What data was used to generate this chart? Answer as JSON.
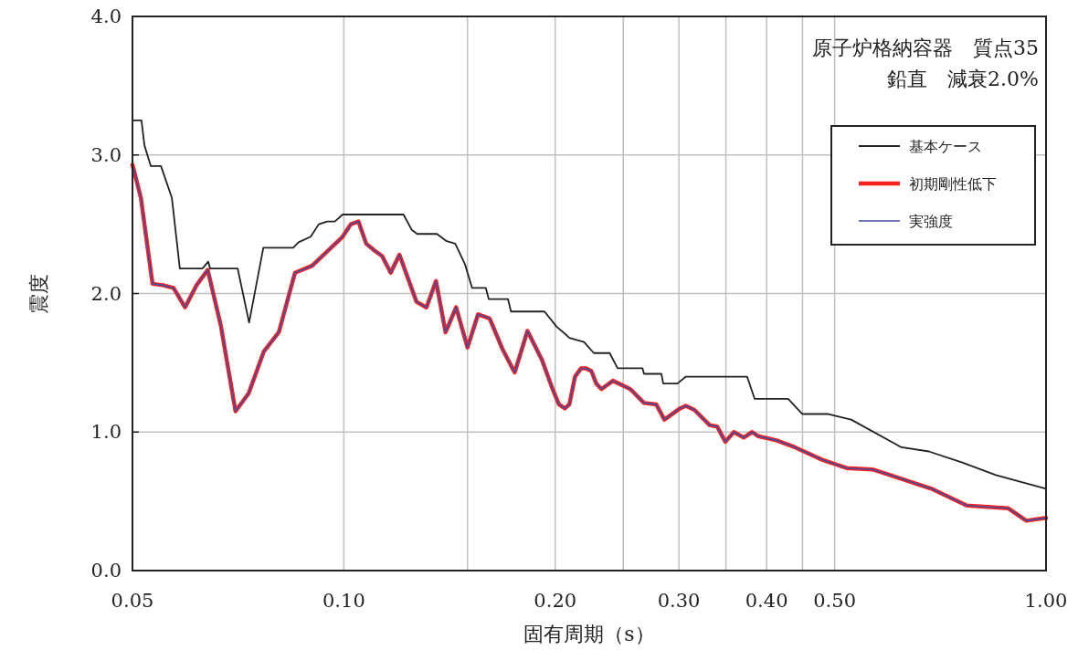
{
  "chart_data": {
    "type": "line",
    "xlabel": "固有周期（s）",
    "ylabel": "震度",
    "log": "x",
    "grid": true,
    "legend": "top right",
    "annotations": [
      "原子炉格納容器　質点35",
      "鉛直　減衰2.0%"
    ],
    "xlim": [
      0.05,
      1.0
    ],
    "ylim": [
      0,
      4
    ],
    "xticks": [
      {
        "value": 0.05,
        "label": "0.05"
      },
      {
        "value": 0.1,
        "label": "0.10"
      },
      {
        "value": 0.15,
        "label": null
      },
      {
        "value": 0.2,
        "label": "0.20"
      },
      {
        "value": 0.25,
        "label": null
      },
      {
        "value": 0.3,
        "label": "0.30"
      },
      {
        "value": 0.35,
        "label": null
      },
      {
        "value": 0.4,
        "label": "0.40"
      },
      {
        "value": 0.45,
        "label": null
      },
      {
        "value": 0.5,
        "label": "0.50"
      },
      {
        "value": 1.0,
        "label": "1.00"
      }
    ],
    "yticks": [
      {
        "value": 0,
        "label": "0.0"
      },
      {
        "value": 1,
        "label": "1.0"
      },
      {
        "value": 2,
        "label": "2.0"
      },
      {
        "value": 3,
        "label": "3.0"
      },
      {
        "value": 4,
        "label": "4.0"
      }
    ],
    "series": [
      {
        "name": "基本ケース",
        "color": "#222222",
        "x": [
          0.05,
          0.0515,
          0.052,
          0.0531,
          0.0549,
          0.0569,
          0.0584,
          0.0629,
          0.0641,
          0.0645,
          0.0706,
          0.0733,
          0.0768,
          0.0847,
          0.0862,
          0.0897,
          0.0921,
          0.0947,
          0.0971,
          0.0996,
          0.1216,
          0.1249,
          0.1272,
          0.1357,
          0.1398,
          0.1441,
          0.1488,
          0.1523,
          0.1593,
          0.1608,
          0.1713,
          0.173,
          0.1931,
          0.2009,
          0.2075,
          0.2095,
          0.2198,
          0.227,
          0.2391,
          0.2454,
          0.2663,
          0.2676,
          0.2833,
          0.285,
          0.2987,
          0.3069,
          0.3752,
          0.3846,
          0.4293,
          0.4498,
          0.4897,
          0.5278,
          0.6224,
          0.6809,
          0.7598,
          0.8482,
          1.0
        ],
        "values": [
          3.25,
          3.25,
          3.07,
          2.92,
          2.92,
          2.69,
          2.18,
          2.18,
          2.23,
          2.18,
          2.18,
          1.79,
          2.33,
          2.33,
          2.37,
          2.41,
          2.5,
          2.52,
          2.52,
          2.57,
          2.57,
          2.46,
          2.43,
          2.43,
          2.38,
          2.36,
          2.21,
          2.04,
          2.04,
          1.96,
          1.96,
          1.87,
          1.87,
          1.76,
          1.7,
          1.68,
          1.65,
          1.57,
          1.57,
          1.46,
          1.46,
          1.42,
          1.42,
          1.35,
          1.35,
          1.4,
          1.4,
          1.24,
          1.24,
          1.13,
          1.13,
          1.09,
          0.89,
          0.86,
          0.78,
          0.69,
          0.59
        ]
      },
      {
        "name": "初期剛性低下",
        "color": "#ff2020",
        "x": [
          0.05,
          0.0514,
          0.0534,
          0.0552,
          0.0572,
          0.0594,
          0.0617,
          0.064,
          0.0668,
          0.0701,
          0.0732,
          0.0769,
          0.0808,
          0.0852,
          0.0901,
          0.0996,
          0.1023,
          0.1049,
          0.1076,
          0.1106,
          0.1134,
          0.1166,
          0.12,
          0.1269,
          0.1311,
          0.1353,
          0.1396,
          0.1445,
          0.15,
          0.1553,
          0.1613,
          0.1682,
          0.1751,
          0.1826,
          0.1915,
          0.1983,
          0.2024,
          0.2064,
          0.2095,
          0.2134,
          0.2177,
          0.2214,
          0.2252,
          0.2288,
          0.2327,
          0.2417,
          0.2559,
          0.2676,
          0.2785,
          0.2861,
          0.3011,
          0.3069,
          0.3156,
          0.3318,
          0.3401,
          0.3494,
          0.3593,
          0.371,
          0.3815,
          0.3892,
          0.4133,
          0.4388,
          0.4477,
          0.48,
          0.52,
          0.5661,
          0.6161,
          0.6876,
          0.7713,
          0.8828,
          0.9373,
          1.0
        ],
        "values": [
          2.93,
          2.69,
          2.07,
          2.06,
          2.04,
          1.9,
          2.06,
          2.17,
          1.77,
          1.15,
          1.28,
          1.58,
          1.72,
          2.15,
          2.2,
          2.41,
          2.5,
          2.52,
          2.36,
          2.31,
          2.27,
          2.15,
          2.28,
          1.94,
          1.9,
          2.09,
          1.72,
          1.9,
          1.61,
          1.85,
          1.82,
          1.6,
          1.43,
          1.73,
          1.52,
          1.31,
          1.2,
          1.17,
          1.2,
          1.4,
          1.46,
          1.46,
          1.44,
          1.35,
          1.31,
          1.37,
          1.31,
          1.21,
          1.2,
          1.09,
          1.17,
          1.19,
          1.16,
          1.05,
          1.04,
          0.93,
          1.0,
          0.96,
          1.0,
          0.97,
          0.94,
          0.89,
          0.87,
          0.8,
          0.74,
          0.73,
          0.67,
          0.59,
          0.47,
          0.45,
          0.36,
          0.38
        ]
      },
      {
        "name": "実強度",
        "color": "#3a50a0",
        "x": [
          0.05,
          0.0514,
          0.0534,
          0.0552,
          0.0572,
          0.0594,
          0.0617,
          0.064,
          0.0668,
          0.0701,
          0.0732,
          0.0769,
          0.0808,
          0.0852,
          0.0901,
          0.0996,
          0.1023,
          0.1049,
          0.1076,
          0.1106,
          0.1134,
          0.1166,
          0.12,
          0.1269,
          0.1311,
          0.1353,
          0.1396,
          0.1445,
          0.15,
          0.1553,
          0.1613,
          0.1682,
          0.1751,
          0.1826,
          0.1915,
          0.1983,
          0.2024,
          0.2064,
          0.2095,
          0.2134,
          0.2177,
          0.2214,
          0.2252,
          0.2288,
          0.2327,
          0.2417,
          0.2559,
          0.2676,
          0.2785,
          0.2861,
          0.3011,
          0.3069,
          0.3156,
          0.3318,
          0.3401,
          0.3494,
          0.3593,
          0.371,
          0.3815,
          0.3892,
          0.4133,
          0.4388,
          0.4477,
          0.48,
          0.52,
          0.5661,
          0.6161,
          0.6876,
          0.7713,
          0.8828,
          0.9373,
          1.0
        ],
        "values": [
          2.93,
          2.69,
          2.07,
          2.06,
          2.04,
          1.9,
          2.06,
          2.17,
          1.77,
          1.15,
          1.28,
          1.58,
          1.72,
          2.15,
          2.2,
          2.41,
          2.5,
          2.52,
          2.36,
          2.31,
          2.27,
          2.15,
          2.28,
          1.94,
          1.9,
          2.09,
          1.72,
          1.9,
          1.61,
          1.85,
          1.82,
          1.6,
          1.43,
          1.73,
          1.52,
          1.31,
          1.2,
          1.17,
          1.2,
          1.4,
          1.46,
          1.46,
          1.44,
          1.35,
          1.31,
          1.37,
          1.31,
          1.21,
          1.2,
          1.09,
          1.17,
          1.19,
          1.16,
          1.05,
          1.04,
          0.93,
          1.0,
          0.96,
          1.0,
          0.97,
          0.94,
          0.89,
          0.87,
          0.8,
          0.74,
          0.73,
          0.67,
          0.59,
          0.47,
          0.45,
          0.36,
          0.38
        ]
      }
    ]
  }
}
